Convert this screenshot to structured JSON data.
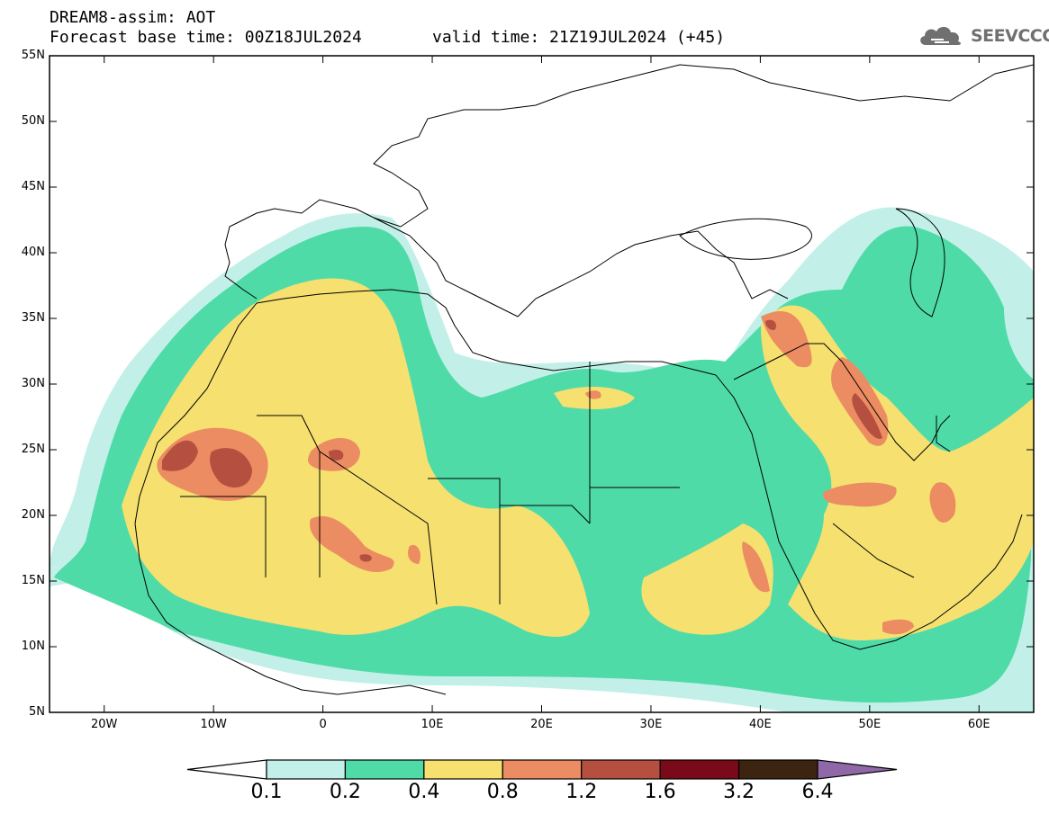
{
  "header": {
    "title": "DREAM8-assim: AOT",
    "base_time": "Forecast base time: 00Z18JUL2024",
    "valid_time": "valid time: 21Z19JUL2024 (+45)"
  },
  "logo": {
    "text": "SEEVCCC",
    "icon": "cloud-icon",
    "color": "#707070"
  },
  "map": {
    "lat_labels": [
      "55N",
      "50N",
      "45N",
      "40N",
      "35N",
      "30N",
      "25N",
      "20N",
      "15N",
      "10N",
      "5N"
    ],
    "lon_labels": [
      "20W",
      "10W",
      "0",
      "10E",
      "20E",
      "30E",
      "40E",
      "50E",
      "60E"
    ],
    "lat_range": [
      5,
      55
    ],
    "lon_range": [
      -25,
      65
    ],
    "background": "#ffffff",
    "border_color": "#000000"
  },
  "colorbar": {
    "labels": [
      "0.1",
      "0.2",
      "0.4",
      "0.8",
      "1.2",
      "1.6",
      "3.2",
      "6.4"
    ],
    "colors": [
      "#ffffff",
      "#c2f0e8",
      "#4fdba8",
      "#f5e070",
      "#ec8c62",
      "#b55040",
      "#7a0a1a",
      "#3c2410",
      "#9068a8"
    ]
  }
}
